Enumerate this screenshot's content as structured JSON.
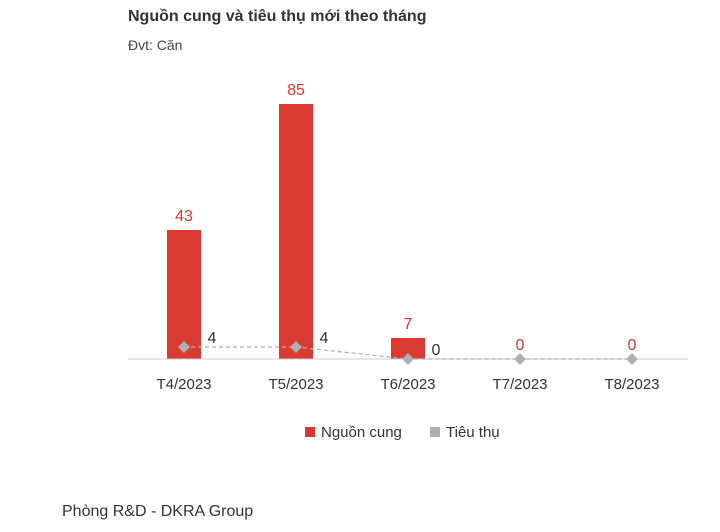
{
  "title": "Nguồn cung và tiêu thụ mới theo tháng",
  "unit_label": "Đvt: Căn",
  "footer": "Phòng R&D - DKRA Group",
  "colors": {
    "supply": "#d93a32",
    "sales": "#b0b0b0",
    "axis": "#cccccc",
    "text": "#333333"
  },
  "chart_data": {
    "type": "bar",
    "title": "Nguồn cung và tiêu thụ mới theo tháng",
    "categories": [
      "T4/2023",
      "T5/2023",
      "T6/2023",
      "T7/2023",
      "T8/2023"
    ],
    "series": [
      {
        "name": "Nguồn cung",
        "type": "bar",
        "values": [
          43,
          85,
          7,
          0,
          0
        ]
      },
      {
        "name": "Tiêu thụ",
        "type": "line",
        "marker": "diamond",
        "values": [
          4,
          4,
          0,
          0,
          0
        ]
      }
    ],
    "ylim": [
      0,
      85
    ],
    "grid": false,
    "legend": "bottom"
  }
}
